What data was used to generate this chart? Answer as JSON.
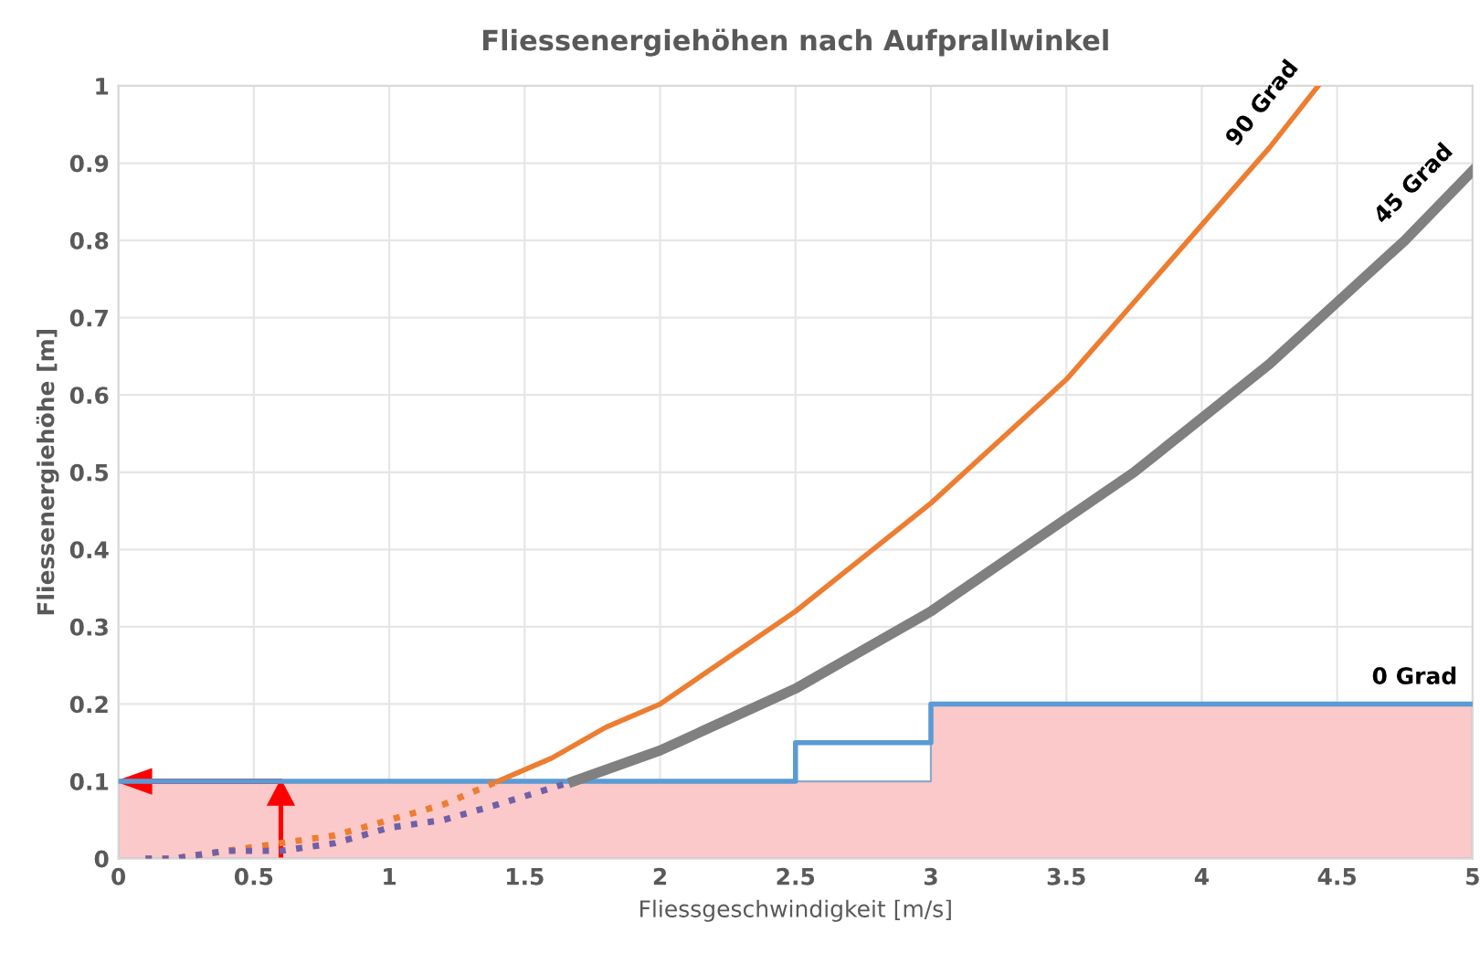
{
  "chart_data": {
    "type": "line",
    "title": "Fliessenergiehöhen nach Aufprallwinkel",
    "xlabel": "Fliessgeschwindigkeit [m/s]",
    "ylabel": "Fliessenergiehöhe [m]",
    "xlim": [
      0,
      5
    ],
    "ylim": [
      0,
      1
    ],
    "xticks": [
      0,
      0.5,
      1,
      1.5,
      2,
      2.5,
      3,
      3.5,
      4,
      4.5,
      5
    ],
    "yticks": [
      0,
      0.1,
      0.2,
      0.3,
      0.4,
      0.5,
      0.6,
      0.7,
      0.8,
      0.9,
      1
    ],
    "grid": true,
    "legend": false,
    "series": [
      {
        "type": "area",
        "color": "#fbc9c9",
        "x": [
          0,
          3,
          3,
          5
        ],
        "values": [
          0.1,
          0.1,
          0.2,
          0.2
        ]
      },
      {
        "type": "step",
        "name": "0 Grad",
        "color": "#5b9bd5",
        "x": [
          0,
          2.5,
          3,
          5
        ],
        "values": [
          0.1,
          0.15,
          0.2,
          0.2
        ]
      },
      {
        "color": "#ed7d31",
        "line_style": "dotted",
        "x": [
          0.1,
          0.2,
          0.4,
          0.6,
          0.8,
          1.0,
          1.2,
          1.4
        ],
        "values": [
          0.0,
          0.0,
          0.01,
          0.02,
          0.03,
          0.05,
          0.07,
          0.1
        ]
      },
      {
        "color": "#7060a8",
        "line_style": "dotted",
        "x": [
          0.1,
          0.2,
          0.4,
          0.6,
          0.8,
          1.0,
          1.2,
          1.4,
          1.68
        ],
        "values": [
          0.0,
          0.0,
          0.01,
          0.01,
          0.02,
          0.04,
          0.05,
          0.07,
          0.1
        ]
      },
      {
        "name": "90 Grad",
        "color": "#ed7d31",
        "line_style": "solid",
        "x": [
          1.4,
          1.6,
          1.8,
          2,
          2.25,
          2.5,
          2.75,
          3,
          3.25,
          3.5,
          3.75,
          4,
          4.25,
          4.43
        ],
        "values": [
          0.1,
          0.13,
          0.17,
          0.2,
          0.26,
          0.32,
          0.39,
          0.46,
          0.54,
          0.62,
          0.72,
          0.82,
          0.92,
          1.0
        ]
      },
      {
        "name": "45 Grad",
        "color": "#808080",
        "line_style": "solid",
        "x": [
          1.68,
          2,
          2.25,
          2.5,
          2.75,
          3,
          3.25,
          3.5,
          3.75,
          4,
          4.25,
          4.5,
          4.75,
          5
        ],
        "values": [
          0.1,
          0.14,
          0.18,
          0.22,
          0.27,
          0.32,
          0.38,
          0.44,
          0.5,
          0.57,
          0.64,
          0.72,
          0.8,
          0.89
        ]
      }
    ]
  }
}
